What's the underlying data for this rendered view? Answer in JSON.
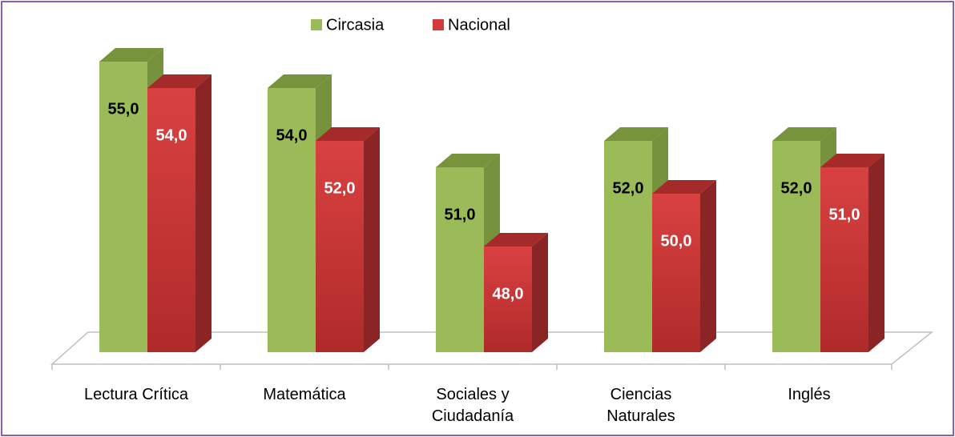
{
  "chart_data": {
    "type": "bar3d",
    "categories": [
      "Lectura Crítica",
      "Matemática",
      "Sociales y Ciudadanía",
      "Ciencias Naturales",
      "Inglés"
    ],
    "series": [
      {
        "name": "Circasia",
        "color": "#9bbb59",
        "values": [
          55,
          54,
          51,
          52,
          52
        ],
        "value_labels": [
          "55,0",
          "54,0",
          "51,0",
          "52,0",
          "52,0"
        ]
      },
      {
        "name": "Nacional",
        "color": "#d13b3b",
        "values": [
          54,
          52,
          48,
          50,
          51
        ],
        "value_labels": [
          "54,0",
          "52,0",
          "48,0",
          "50,0",
          "51,0"
        ]
      }
    ],
    "ylim": [
      44,
      56
    ],
    "legend": "top"
  }
}
